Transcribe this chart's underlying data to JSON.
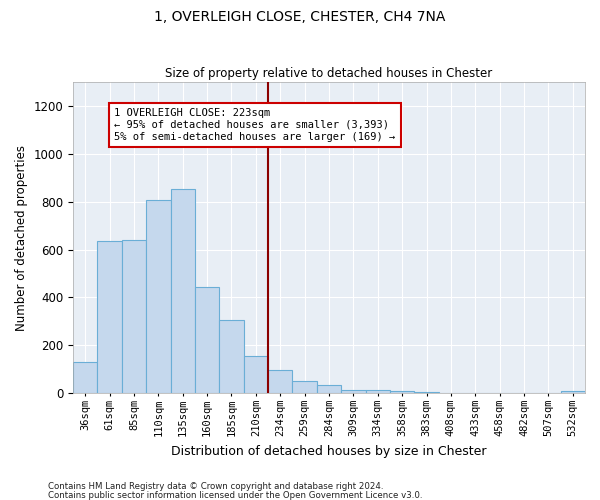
{
  "title": "1, OVERLEIGH CLOSE, CHESTER, CH4 7NA",
  "subtitle": "Size of property relative to detached houses in Chester",
  "xlabel": "Distribution of detached houses by size in Chester",
  "ylabel": "Number of detached properties",
  "bar_color": "#c5d8ed",
  "bar_edge_color": "#6aaed6",
  "background_color": "#e8eef5",
  "grid_color": "#ffffff",
  "bin_labels": [
    "36sqm",
    "61sqm",
    "85sqm",
    "110sqm",
    "135sqm",
    "160sqm",
    "185sqm",
    "210sqm",
    "234sqm",
    "259sqm",
    "284sqm",
    "309sqm",
    "334sqm",
    "358sqm",
    "383sqm",
    "408sqm",
    "433sqm",
    "458sqm",
    "482sqm",
    "507sqm",
    "532sqm"
  ],
  "bar_values": [
    130,
    635,
    640,
    805,
    855,
    445,
    305,
    155,
    95,
    50,
    35,
    15,
    15,
    10,
    5,
    0,
    0,
    0,
    0,
    0,
    10
  ],
  "vline_color": "#8b0000",
  "ylim": [
    0,
    1300
  ],
  "yticks": [
    0,
    200,
    400,
    600,
    800,
    1000,
    1200
  ],
  "annotation_title": "1 OVERLEIGH CLOSE: 223sqm",
  "annotation_line1": "← 95% of detached houses are smaller (3,393)",
  "annotation_line2": "5% of semi-detached houses are larger (169) →",
  "footnote1": "Contains HM Land Registry data © Crown copyright and database right 2024.",
  "footnote2": "Contains public sector information licensed under the Open Government Licence v3.0."
}
